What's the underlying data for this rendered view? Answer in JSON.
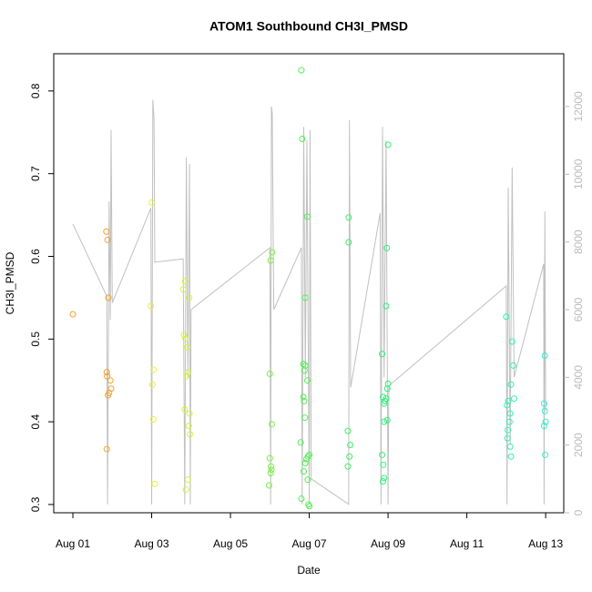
{
  "chart_data": {
    "type": "scatter",
    "title": "ATOM1 Southbound CH3I_PMSD",
    "xlabel": "Date",
    "ylabel": "CH3I_PMSD",
    "xlim": [
      -0.486,
      12.46
    ],
    "xticks": [
      {
        "value": 0,
        "label": "Aug 01"
      },
      {
        "value": 2,
        "label": "Aug 03"
      },
      {
        "value": 4,
        "label": "Aug 05"
      },
      {
        "value": 6,
        "label": "Aug 07"
      },
      {
        "value": 8,
        "label": "Aug 09"
      },
      {
        "value": 10,
        "label": "Aug 11"
      },
      {
        "value": 12,
        "label": "Aug 13"
      }
    ],
    "ylim": [
      0.29,
      0.845
    ],
    "yticks": [
      0.3,
      0.4,
      0.5,
      0.6,
      0.7,
      0.8
    ],
    "y2lim": [
      0,
      13560
    ],
    "y2ticks": [
      0,
      2000,
      4000,
      6000,
      8000,
      10000,
      12000
    ],
    "y2color": "#bbbbbb",
    "series": [
      {
        "type": "scatter",
        "color": "#f0a030",
        "x": [
          0,
          0.85,
          0.88,
          0.9,
          0.86,
          0.87,
          0.95,
          0.97,
          0.92,
          0.89,
          0.86
        ],
        "values": [
          0.53,
          0.63,
          0.62,
          0.55,
          0.46,
          0.455,
          0.45,
          0.44,
          0.435,
          0.432,
          0.367
        ]
      },
      {
        "type": "scatter",
        "color": "#e8f040",
        "x": [
          2.0,
          1.98,
          2.05,
          2.02,
          2.04,
          2.08
        ],
        "values": [
          0.665,
          0.54,
          0.463,
          0.445,
          0.403,
          0.325
        ]
      },
      {
        "type": "scatter",
        "color": "#d6f23c",
        "x": [
          2.8,
          2.85,
          2.95,
          2.82,
          2.86,
          2.9,
          2.93,
          2.88,
          2.84,
          2.96,
          2.94,
          2.97,
          2.92,
          2.87
        ],
        "values": [
          0.56,
          0.57,
          0.55,
          0.505,
          0.5,
          0.49,
          0.46,
          0.455,
          0.415,
          0.41,
          0.395,
          0.385,
          0.33,
          0.318
        ]
      },
      {
        "type": "scatter",
        "color": "#78f040",
        "x": [
          5.06,
          5.02,
          5.0,
          5.05,
          5.0,
          5.03,
          5.04,
          5.02,
          4.98
        ],
        "values": [
          0.605,
          0.595,
          0.458,
          0.397,
          0.356,
          0.346,
          0.342,
          0.338,
          0.323
        ]
      },
      {
        "type": "scatter",
        "color": "#50f050",
        "x": [
          5.8,
          5.82,
          5.95,
          5.9,
          5.85,
          5.9,
          5.88,
          5.95,
          5.85,
          5.87,
          5.89,
          5.78,
          6.0,
          5.97,
          5.93,
          5.9,
          5.86,
          5.96,
          5.8,
          5.98,
          6.0
        ],
        "values": [
          0.825,
          0.742,
          0.648,
          0.55,
          0.47,
          0.468,
          0.462,
          0.45,
          0.43,
          0.425,
          0.405,
          0.375,
          0.36,
          0.358,
          0.355,
          0.35,
          0.34,
          0.33,
          0.307,
          0.3,
          0.298
        ]
      },
      {
        "type": "scatter",
        "color": "#40f060",
        "x": [
          7.0,
          7.0,
          6.98,
          7.04,
          7.02,
          6.98
        ],
        "values": [
          0.647,
          0.617,
          0.389,
          0.372,
          0.358,
          0.346
        ]
      },
      {
        "type": "scatter",
        "color": "#30f078",
        "x": [
          8.0,
          7.97,
          7.95,
          7.85,
          8.0,
          7.98,
          7.87,
          7.95,
          7.92,
          7.9,
          7.98,
          7.9,
          7.85,
          7.88,
          7.9,
          7.87
        ],
        "values": [
          0.735,
          0.61,
          0.54,
          0.482,
          0.446,
          0.44,
          0.43,
          0.428,
          0.425,
          0.422,
          0.402,
          0.4,
          0.36,
          0.348,
          0.332,
          0.328
        ]
      },
      {
        "type": "scatter",
        "color": "#30f0b4",
        "x": [
          11.0,
          11.15,
          11.18,
          11.12,
          11.2,
          11.05,
          11.02,
          11.1,
          11.08,
          11.04,
          11.03,
          11.1,
          11.12
        ],
        "values": [
          0.527,
          0.497,
          0.468,
          0.445,
          0.428,
          0.425,
          0.42,
          0.41,
          0.4,
          0.39,
          0.38,
          0.37,
          0.358
        ]
      },
      {
        "type": "scatter",
        "color": "#30f0cc",
        "x": [
          11.98,
          11.96,
          11.98,
          12.0,
          11.96,
          11.99
        ],
        "values": [
          0.48,
          0.422,
          0.413,
          0.4,
          0.395,
          0.36
        ]
      },
      {
        "type": "line",
        "axis": "y2",
        "color": "#c0c0c0",
        "x": [
          0,
          0.86,
          0.88,
          0.92,
          0.95,
          0.97,
          1.0,
          1.98,
          2.0,
          2.03,
          2.06,
          2.08,
          2.8,
          2.84,
          2.88,
          2.92,
          2.96,
          2.98,
          3.0,
          5.0,
          5.02,
          5.04,
          5.06,
          5.1,
          5.8,
          5.82,
          5.86,
          5.9,
          5.94,
          6.0,
          6.02,
          6.05,
          7.0,
          7.02,
          7.05,
          7.8,
          7.82,
          7.86,
          7.9,
          7.95,
          8.0,
          8.02,
          11.0,
          11.02,
          11.05,
          11.1,
          11.15,
          11.2,
          11.95,
          11.96,
          11.98,
          12.0
        ],
        "values": [
          8530,
          6400,
          250,
          9200,
          5700,
          11300,
          6200,
          9000,
          250,
          12200,
          11600,
          7400,
          7500,
          250,
          10500,
          4000,
          10300,
          250,
          6000,
          7830,
          250,
          12000,
          11800,
          6000,
          7830,
          250,
          11400,
          4000,
          11000,
          250,
          11300,
          1000,
          250,
          11600,
          3700,
          8860,
          250,
          11400,
          4000,
          11000,
          250,
          3750,
          6700,
          250,
          9600,
          2000,
          10200,
          4000,
          7350,
          250,
          8900,
          3000
        ]
      }
    ]
  }
}
